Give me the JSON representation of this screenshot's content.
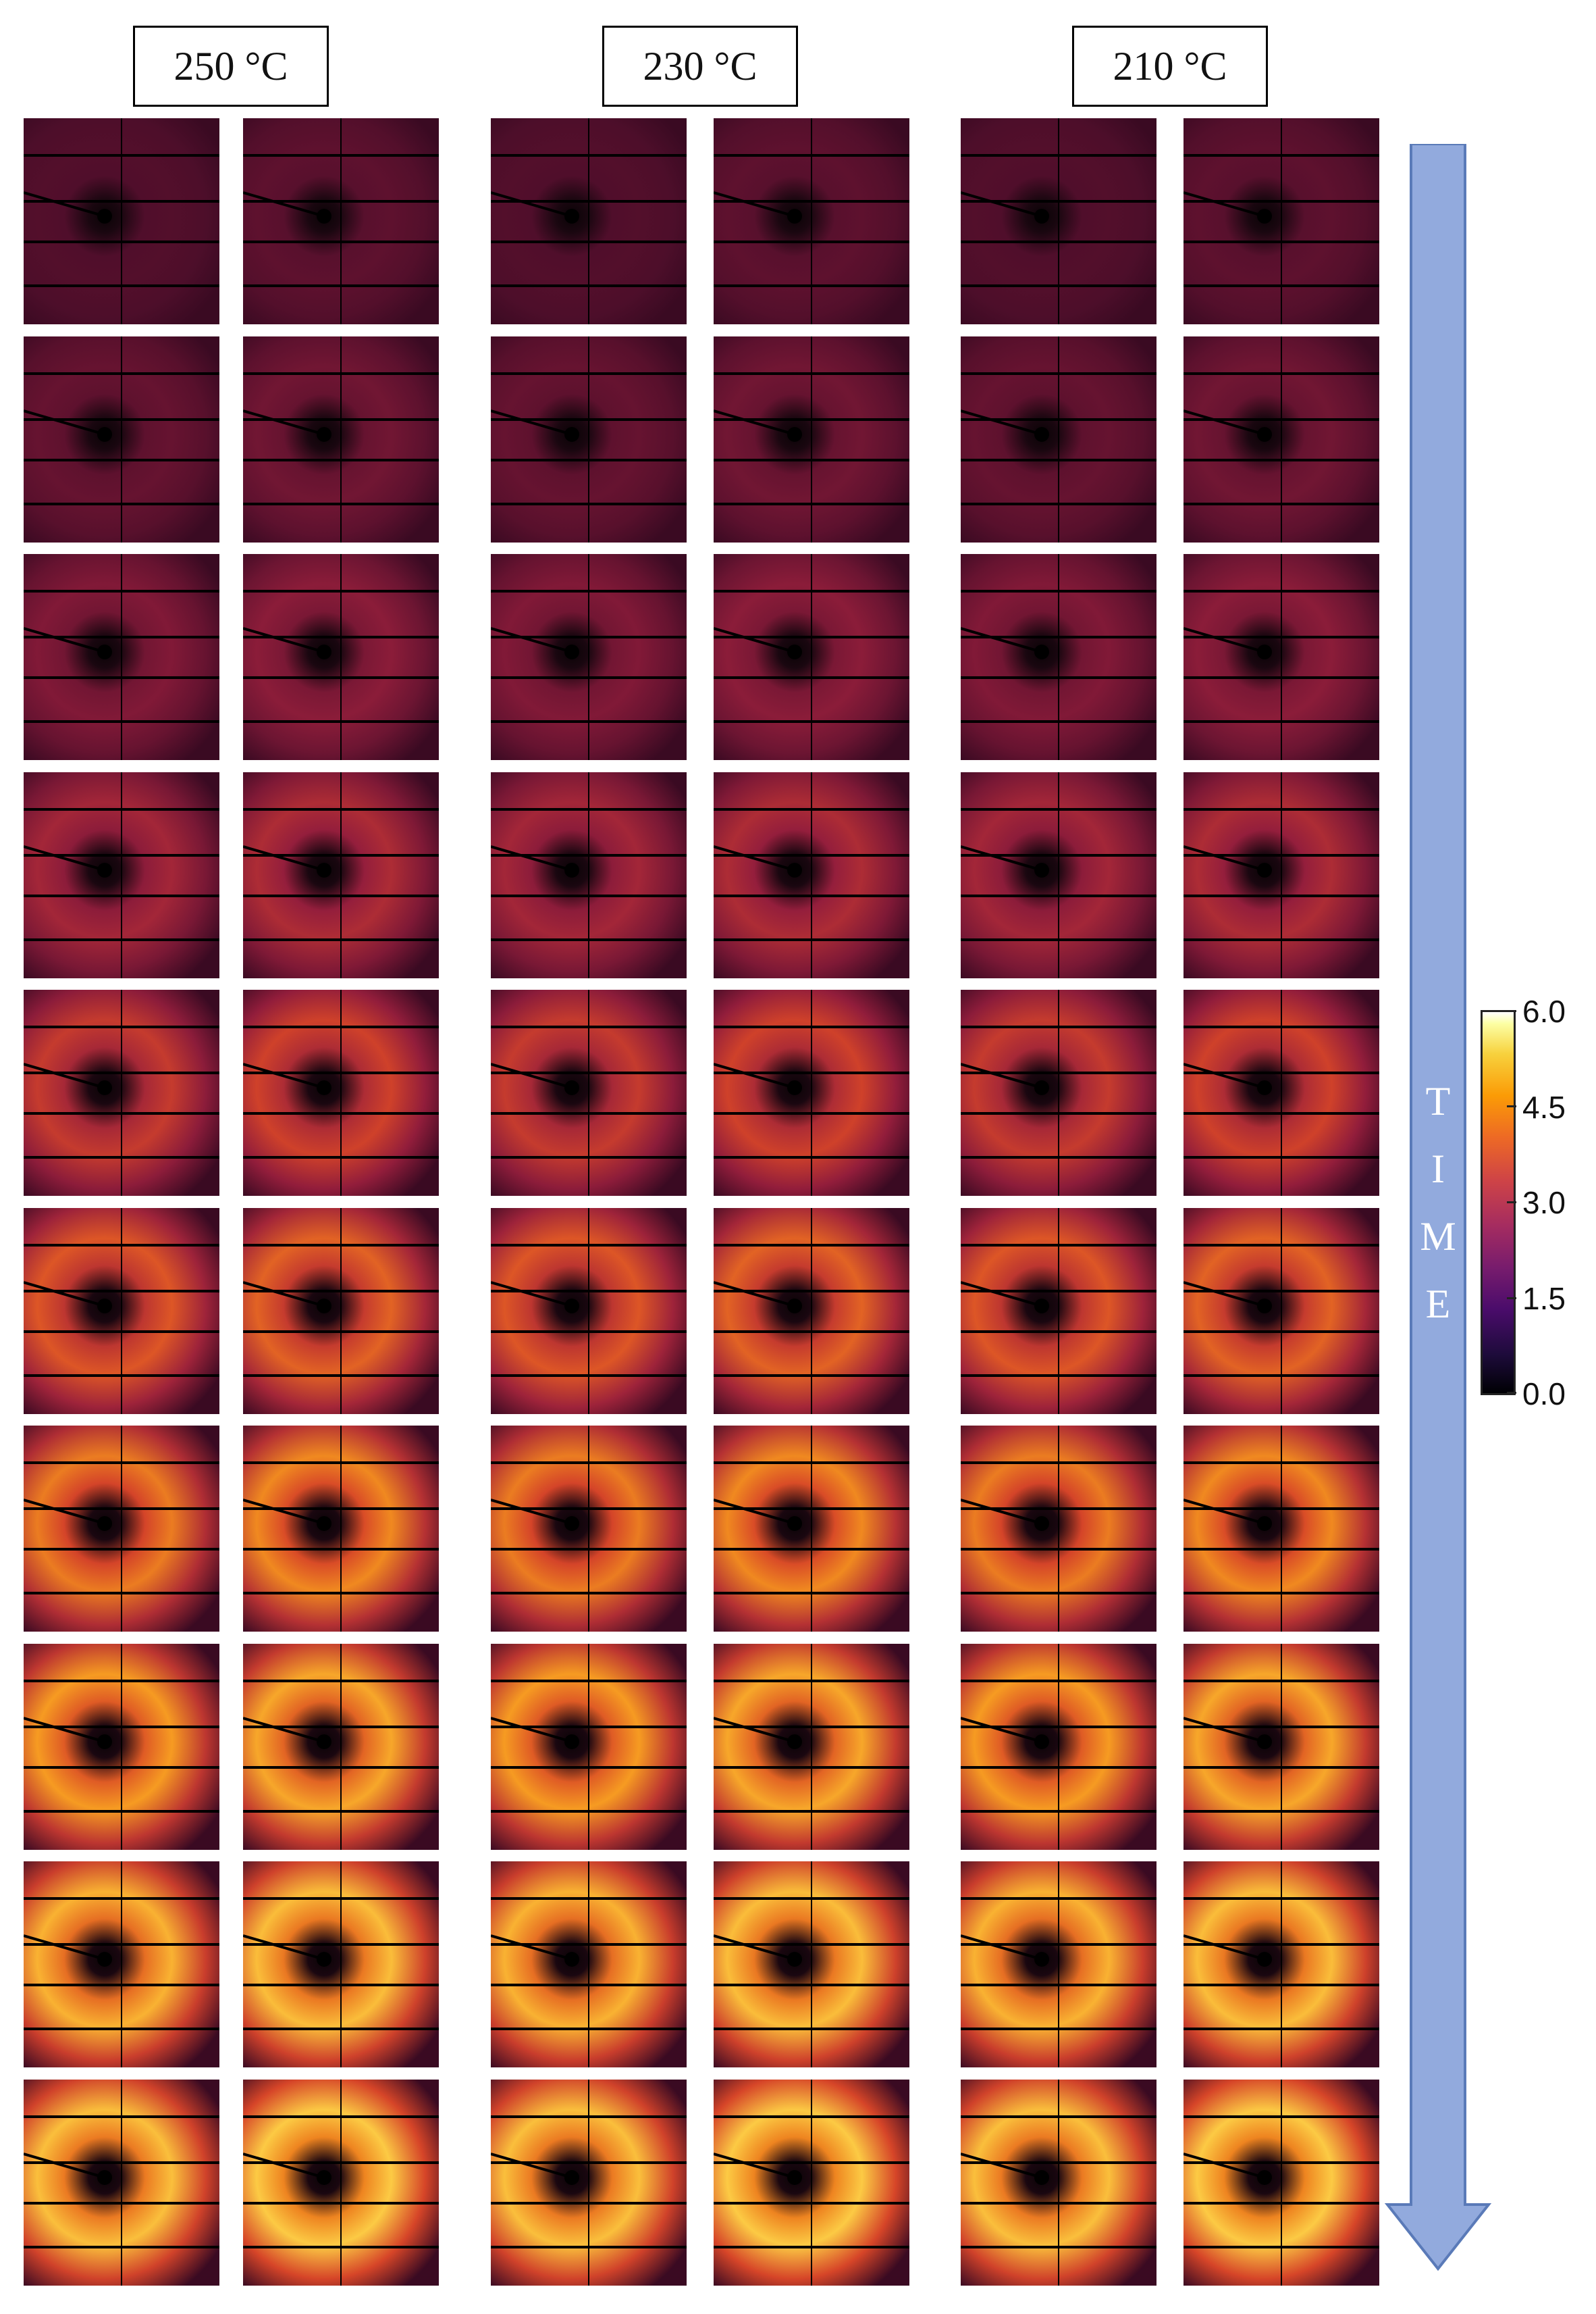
{
  "headers": [
    "250 °C",
    "230 °C",
    "210 °C"
  ],
  "time_label": [
    "T",
    "I",
    "M",
    "E"
  ],
  "colorbar": {
    "ticks": [
      "6.0",
      "4.5",
      "3.0",
      "1.5",
      "0.0"
    ],
    "colors": [
      "#000004",
      "#4a0c6b",
      "#a52c60",
      "#ed6925",
      "#f7d13d",
      "#ffffff"
    ]
  },
  "arrow_color": "#92aadd",
  "panel_grid": {
    "rows": 10,
    "columns": 6,
    "ring_intensity_by_row": [
      0.05,
      0.12,
      0.22,
      0.35,
      0.48,
      0.6,
      0.72,
      0.82,
      0.9,
      0.95
    ]
  }
}
